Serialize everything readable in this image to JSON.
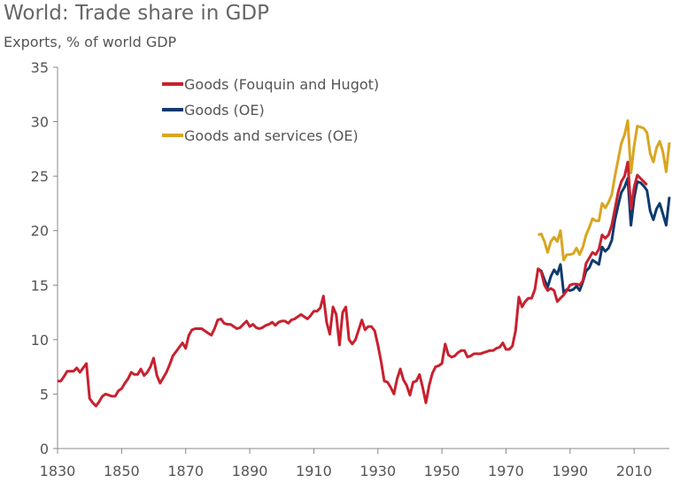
{
  "chart_data": {
    "type": "line",
    "title": "World: Trade share in GDP",
    "subtitle": "Exports, % of world GDP",
    "xlim": [
      1830,
      2021
    ],
    "ylim": [
      0,
      35
    ],
    "x_ticks": [
      1830,
      1850,
      1870,
      1890,
      1910,
      1930,
      1950,
      1970,
      1990,
      2010
    ],
    "y_ticks": [
      0,
      5,
      10,
      15,
      20,
      25,
      30,
      35
    ],
    "grid": false,
    "legend_position": "top-left",
    "series": [
      {
        "name": "Goods (Fouquin and Hugot)",
        "color": "#c8202e",
        "start_year": 1830,
        "values": [
          6.2,
          6.2,
          6.6,
          7.1,
          7.1,
          7.1,
          7.4,
          7.0,
          7.4,
          7.8,
          4.6,
          4.2,
          3.9,
          4.3,
          4.8,
          5.0,
          4.9,
          4.8,
          4.8,
          5.3,
          5.5,
          6.0,
          6.4,
          7.0,
          6.8,
          6.8,
          7.3,
          6.7,
          7.0,
          7.5,
          8.3,
          6.7,
          6.0,
          6.5,
          7.0,
          7.7,
          8.5,
          8.9,
          9.3,
          9.7,
          9.2,
          10.4,
          10.9,
          11.0,
          11.0,
          11.0,
          10.8,
          10.6,
          10.4,
          11.0,
          11.8,
          11.9,
          11.5,
          11.4,
          11.4,
          11.2,
          11.0,
          11.1,
          11.4,
          11.7,
          11.2,
          11.4,
          11.1,
          11.0,
          11.1,
          11.3,
          11.4,
          11.6,
          11.3,
          11.6,
          11.7,
          11.7,
          11.5,
          11.8,
          11.9,
          12.1,
          12.3,
          12.1,
          11.9,
          12.2,
          12.6,
          12.6,
          12.9,
          14.0,
          11.6,
          10.5,
          13.0,
          12.3,
          9.5,
          12.5,
          13.0,
          10.0,
          9.6,
          10.0,
          10.9,
          11.8,
          10.9,
          11.2,
          11.2,
          10.8,
          9.5,
          8.0,
          6.2,
          6.1,
          5.6,
          5.0,
          6.4,
          7.3,
          6.3,
          5.8,
          4.9,
          6.1,
          6.2,
          6.8,
          5.6,
          4.2,
          5.8,
          6.9,
          7.5,
          7.6,
          7.8,
          9.6,
          8.6,
          8.4,
          8.5,
          8.8,
          9.0,
          9.0,
          8.4,
          8.5,
          8.7,
          8.7,
          8.7,
          8.8,
          8.9,
          9.0,
          9.0,
          9.2,
          9.3,
          9.7,
          9.1,
          9.1,
          9.4,
          10.8,
          13.9,
          13.0,
          13.5,
          13.8,
          13.8,
          14.6,
          16.5,
          16.2,
          15.0,
          14.5,
          14.7,
          14.5,
          13.5,
          13.8,
          14.1,
          14.5,
          15.0,
          15.1,
          15.1,
          15.0,
          15.4,
          17.0,
          17.5,
          18.0,
          17.8,
          18.3,
          19.6,
          19.3,
          19.6,
          20.5,
          22.0,
          23.5,
          24.5,
          25.0,
          26.3,
          22.0,
          24.0,
          25.1,
          24.8,
          24.5,
          24.2
        ]
      },
      {
        "name": "Goods (OE)",
        "color": "#0d3a6e",
        "start_year": 1980,
        "values": [
          16.5,
          16.3,
          15.5,
          14.8,
          15.8,
          16.4,
          16.0,
          16.9,
          14.3,
          14.6,
          14.5,
          14.6,
          14.9,
          14.5,
          15.3,
          16.3,
          16.6,
          17.3,
          17.1,
          16.9,
          18.5,
          18.1,
          18.4,
          19.1,
          21.0,
          22.3,
          23.5,
          24.0,
          24.8,
          20.5,
          23.0,
          24.5,
          24.4,
          24.1,
          23.7,
          21.8,
          21.0,
          22.0,
          22.5,
          21.5,
          20.5,
          23.1
        ]
      },
      {
        "name": "Goods and services (OE)",
        "color": "#d9a521",
        "start_year": 1980,
        "values": [
          19.6,
          19.7,
          19.0,
          18.0,
          19.0,
          19.4,
          19.0,
          20.0,
          17.3,
          17.8,
          17.8,
          17.9,
          18.4,
          17.8,
          18.5,
          19.6,
          20.3,
          21.1,
          20.9,
          20.9,
          22.5,
          22.1,
          22.6,
          23.3,
          25.0,
          26.5,
          28.0,
          28.8,
          30.1,
          25.3,
          27.8,
          29.6,
          29.5,
          29.4,
          29.0,
          27.1,
          26.3,
          27.6,
          28.2,
          27.2,
          25.4,
          28.1
        ]
      }
    ]
  }
}
